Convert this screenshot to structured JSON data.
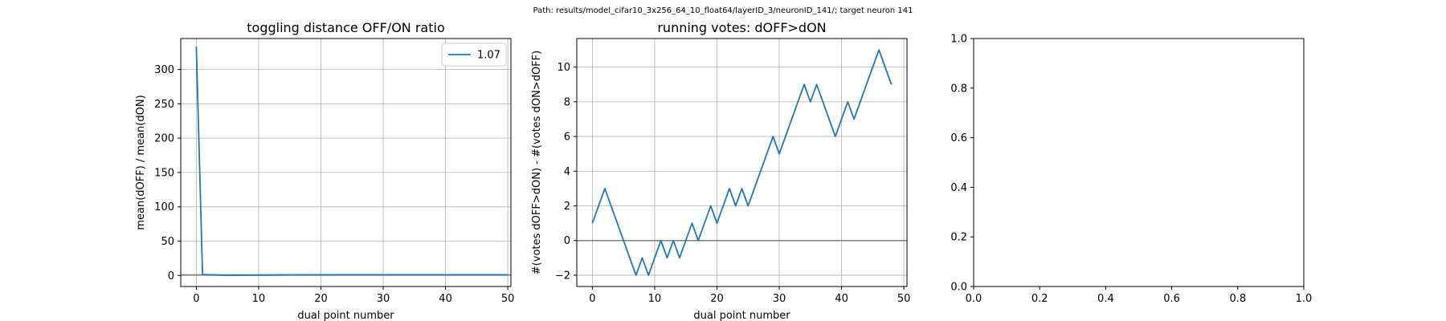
{
  "figure": {
    "suptitle": "Path: results/model_cifar10_3x256_64_10_float64/layerID_3/neuronID_141/; target neuron 141"
  },
  "chart_data": [
    {
      "type": "line",
      "title": "toggling distance OFF/ON ratio",
      "xlabel": "dual point number",
      "ylabel": "mean(dOFF) / mean(dON)",
      "xlim": [
        -2.5,
        50.5
      ],
      "ylim": [
        -16,
        345
      ],
      "xticks": [
        0,
        10,
        20,
        30,
        40,
        50
      ],
      "yticks": [
        0,
        50,
        100,
        150,
        200,
        250,
        300
      ],
      "grid": true,
      "legend": {
        "position": "top-right",
        "entries": [
          "1.07"
        ]
      },
      "hline": {
        "y": 1,
        "color": "#808080"
      },
      "series": [
        {
          "name": "1.07",
          "color": "#1f77b4",
          "x": [
            0,
            1,
            2,
            3,
            4,
            5,
            6,
            7,
            8,
            9,
            10,
            11,
            12,
            13,
            14,
            15,
            16,
            17,
            18,
            19,
            20,
            21,
            22,
            23,
            24,
            25,
            26,
            27,
            28,
            29,
            30,
            31,
            32,
            33,
            34,
            35,
            36,
            37,
            38,
            39,
            40,
            41,
            42,
            43,
            44,
            45,
            46,
            47,
            48,
            49,
            50
          ],
          "y": [
            333,
            1.5,
            1.0,
            0.8,
            0.5,
            0.4,
            0.4,
            0.4,
            0.5,
            0.5,
            0.6,
            0.6,
            0.7,
            0.7,
            0.8,
            0.8,
            0.9,
            0.9,
            0.9,
            1.0,
            1.0,
            1.0,
            1.0,
            1.1,
            1.1,
            1.1,
            1.1,
            1.1,
            1.1,
            1.1,
            1.1,
            1.1,
            1.1,
            1.1,
            1.1,
            1.1,
            1.1,
            1.1,
            1.1,
            1.1,
            1.1,
            1.1,
            1.1,
            1.1,
            1.1,
            1.1,
            1.1,
            1.1,
            1.1,
            1.1,
            1.1
          ]
        }
      ]
    },
    {
      "type": "line",
      "title": "running votes: dOFF>dON",
      "xlabel": "dual point number",
      "ylabel": "#(votes dOFF>dON) - #(votes dON>dOFF)",
      "xlim": [
        -2.5,
        50.5
      ],
      "ylim": [
        -2.65,
        11.65
      ],
      "xticks": [
        0,
        10,
        20,
        30,
        40,
        50
      ],
      "yticks": [
        -2,
        0,
        2,
        4,
        6,
        8,
        10
      ],
      "grid": true,
      "hline": {
        "y": 0,
        "color": "#808080"
      },
      "series": [
        {
          "name": "",
          "color": "#1f77b4",
          "x": [
            0,
            1,
            2,
            3,
            4,
            5,
            6,
            7,
            8,
            9,
            10,
            11,
            12,
            13,
            14,
            15,
            16,
            17,
            18,
            19,
            20,
            21,
            22,
            23,
            24,
            25,
            26,
            27,
            28,
            29,
            30,
            31,
            32,
            33,
            34,
            35,
            36,
            37,
            38,
            39,
            40,
            41,
            42,
            43,
            44,
            45,
            46,
            47,
            48
          ],
          "y": [
            1,
            2,
            3,
            2,
            1,
            0,
            -1,
            -2,
            -1,
            -2,
            -1,
            0,
            -1,
            0,
            -1,
            0,
            1,
            0,
            1,
            2,
            1,
            2,
            3,
            2,
            3,
            2,
            3,
            4,
            5,
            6,
            5,
            6,
            7,
            8,
            9,
            8,
            9,
            8,
            7,
            6,
            7,
            8,
            7,
            8,
            9,
            10,
            11,
            10,
            9
          ]
        }
      ]
    },
    {
      "type": "line",
      "title": "",
      "xlabel": "",
      "ylabel": "",
      "xlim": [
        0,
        1
      ],
      "ylim": [
        0,
        1
      ],
      "xticks": [
        0.0,
        0.2,
        0.4,
        0.6,
        0.8,
        1.0
      ],
      "yticks": [
        0.0,
        0.2,
        0.4,
        0.6,
        0.8,
        1.0
      ],
      "tick_format": 1,
      "grid": false,
      "series": []
    }
  ]
}
